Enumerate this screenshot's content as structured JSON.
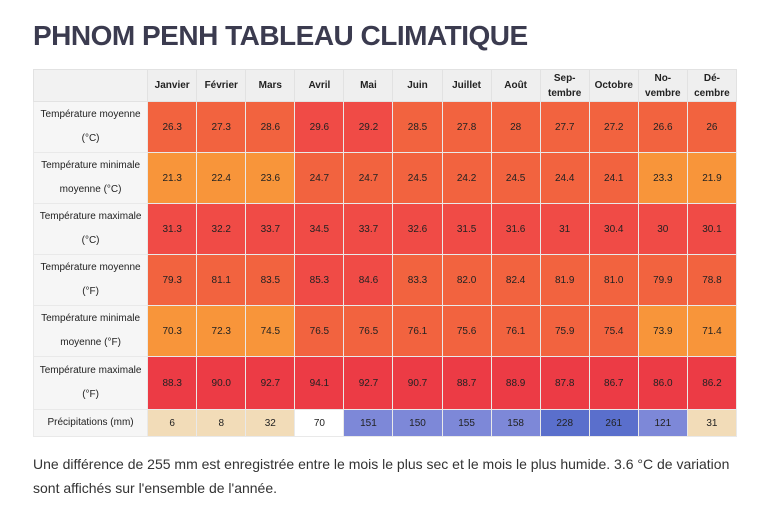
{
  "title": "PHNOM PENH TABLEAU CLIMATIQUE",
  "months": [
    "Janvier",
    "Février",
    "Mars",
    "Avril",
    "Mai",
    "Juin",
    "Juillet",
    "Août",
    "Sep-\ntembre",
    "Octobre",
    "No-\nvembre",
    "Dé-\ncembre"
  ],
  "rows": [
    {
      "label": "Température moyenne (°C)",
      "values": [
        "26.3",
        "27.3",
        "28.6",
        "29.6",
        "29.2",
        "28.5",
        "27.8",
        "28",
        "27.7",
        "27.2",
        "26.6",
        "26"
      ]
    },
    {
      "label": "Température minimale moyenne (°C)",
      "values": [
        "21.3",
        "22.4",
        "23.6",
        "24.7",
        "24.7",
        "24.5",
        "24.2",
        "24.5",
        "24.4",
        "24.1",
        "23.3",
        "21.9"
      ]
    },
    {
      "label": "Température maximale (°C)",
      "values": [
        "31.3",
        "32.2",
        "33.7",
        "34.5",
        "33.7",
        "32.6",
        "31.5",
        "31.6",
        "31",
        "30.4",
        "30",
        "30.1"
      ]
    },
    {
      "label": "Température moyenne (°F)",
      "values": [
        "79.3",
        "81.1",
        "83.5",
        "85.3",
        "84.6",
        "83.3",
        "82.0",
        "82.4",
        "81.9",
        "81.0",
        "79.9",
        "78.8"
      ]
    },
    {
      "label": "Température minimale moyenne (°F)",
      "values": [
        "70.3",
        "72.3",
        "74.5",
        "76.5",
        "76.5",
        "76.1",
        "75.6",
        "76.1",
        "75.9",
        "75.4",
        "73.9",
        "71.4"
      ]
    },
    {
      "label": "Température maximale (°F)",
      "values": [
        "88.3",
        "90.0",
        "92.7",
        "94.1",
        "92.7",
        "90.7",
        "88.7",
        "88.9",
        "87.8",
        "86.7",
        "86.0",
        "86.2"
      ]
    },
    {
      "label": "Précipitations (mm)",
      "values": [
        "6",
        "8",
        "32",
        "70",
        "151",
        "150",
        "155",
        "158",
        "228",
        "261",
        "121",
        "31"
      ]
    }
  ],
  "colors": {
    "row0": [
      "warm",
      "warm",
      "warm",
      "hot",
      "hot",
      "warm",
      "warm",
      "warm",
      "warm",
      "warm",
      "warm",
      "warm"
    ],
    "row1": [
      "mid",
      "mid",
      "mid",
      "warm",
      "warm",
      "warm",
      "warm",
      "warm",
      "warm",
      "warm",
      "mid",
      "mid"
    ],
    "row2": [
      "hot",
      "hot",
      "hot",
      "hot",
      "hot",
      "hot",
      "hot",
      "hot",
      "hot",
      "hot",
      "hot",
      "hot"
    ],
    "row3": [
      "warm",
      "warm",
      "warm",
      "hot",
      "hot",
      "warm",
      "warm",
      "warm",
      "warm",
      "warm",
      "warm",
      "warm"
    ],
    "row4": [
      "mid",
      "mid",
      "mid",
      "warm",
      "warm",
      "warm",
      "warm",
      "warm",
      "warm",
      "warm",
      "mid",
      "mid"
    ],
    "row5": [
      "vhot",
      "vhot",
      "vhot",
      "vhot",
      "vhot",
      "vhot",
      "vhot",
      "vhot",
      "vhot",
      "vhot",
      "vhot",
      "vhot"
    ],
    "row6": [
      "sand",
      "sand",
      "sand",
      "white",
      "blue",
      "blue",
      "blue",
      "blue",
      "dblue",
      "dblue",
      "blue",
      "sand"
    ]
  },
  "summary": "Une différence de 255 mm est enregistrée entre le mois le plus sec et le mois le plus humide. 3.6 °C de variation sont affichés sur l'ensemble de l'année."
}
